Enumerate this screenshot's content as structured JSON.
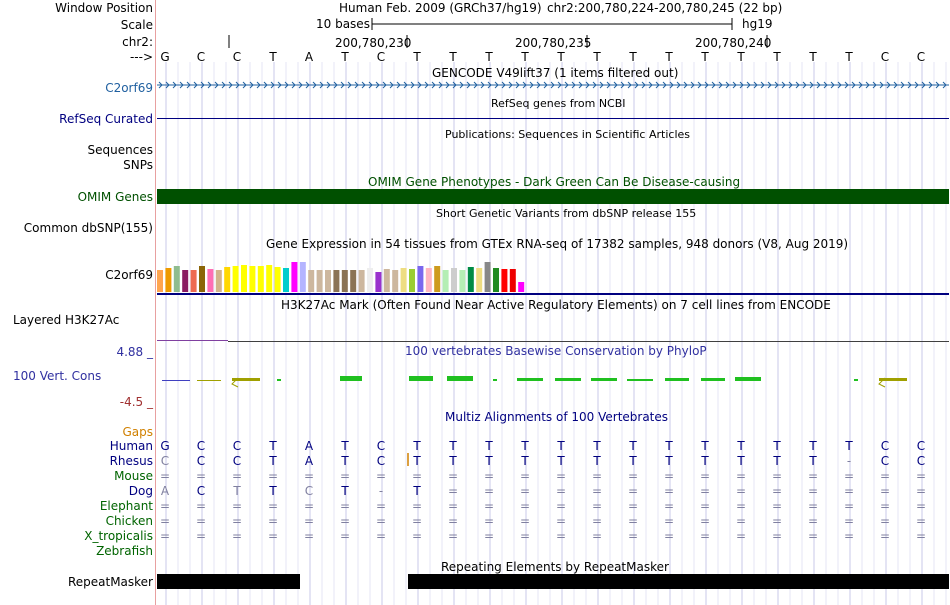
{
  "labels": {
    "window_position": "Window Position",
    "scale": "Scale",
    "chr": "chr2:",
    "strand": "--->",
    "gencode_gene": "C2orf69",
    "refseq": "RefSeq Curated",
    "sequences": "Sequences",
    "snps": "SNPs",
    "omim": "OMIM Genes",
    "dbsnp": "Common dbSNP(155)",
    "gtex_gene": "C2orf69",
    "h3k27ac": "Layered H3K27Ac",
    "cons_max": "4.88 _",
    "cons": "100 Vert. Cons",
    "cons_min": "-4.5 _",
    "gaps": "Gaps",
    "repeatmasker": "RepeatMasker"
  },
  "header": {
    "assembly": "Human Feb. 2009 (GRCh37/hg19)",
    "position": "chr2:200,780,224-200,780,245 (22 bp)",
    "scale_text": "10 bases",
    "db": "hg19",
    "coord1": "200,780,230",
    "coord2": "200,780,235",
    "coord3": "200,780,240"
  },
  "tracks": {
    "gencode": "GENCODE V49lift37 (1 items filtered out)",
    "refseq": "RefSeq genes from NCBI",
    "publications": "Publications: Sequences in Scientific Articles",
    "omim": "OMIM Gene Phenotypes - Dark Green Can Be Disease-causing",
    "dbsnp": "Short Genetic Variants from dbSNP release 155",
    "gtex": "Gene Expression in 54 tissues from GTEx RNA-seq of 17382 samples, 948 donors (V8, Aug 2019)",
    "h3k27ac": "H3K27Ac Mark (Often Found Near Active Regulatory Elements) on 7 cell lines from ENCODE",
    "cons": "100 vertebrates Basewise Conservation by PhyloP",
    "multiz": "Multiz Alignments of 100 Vertebrates",
    "repeatmasker": "Repeating Elements by RepeatMasker"
  },
  "sequence": [
    "G",
    "C",
    "C",
    "T",
    "A",
    "T",
    "C",
    "T",
    "T",
    "T",
    "T",
    "T",
    "T",
    "T",
    "T",
    "T",
    "T",
    "T",
    "T",
    "T",
    "C",
    "C"
  ],
  "alignment": [
    {
      "species": "Human",
      "color": "#000080",
      "bases": [
        "G",
        "C",
        "C",
        "T",
        "A",
        "T",
        "C",
        "T",
        "T",
        "T",
        "T",
        "T",
        "T",
        "T",
        "T",
        "T",
        "T",
        "T",
        "T",
        "T",
        "C",
        "C"
      ]
    },
    {
      "species": "Rhesus",
      "color": "#000080",
      "bases": [
        "C",
        "C",
        "C",
        "T",
        "A",
        "T",
        "C",
        "T",
        "T",
        "T",
        "T",
        "T",
        "T",
        "T",
        "T",
        "T",
        "T",
        "T",
        "T",
        "-",
        "C",
        "C"
      ]
    },
    {
      "species": "Mouse",
      "color": "#006400",
      "bases": [
        "=",
        "=",
        "=",
        "=",
        "=",
        "=",
        "=",
        "=",
        "=",
        "=",
        "=",
        "=",
        "=",
        "=",
        "=",
        "=",
        "=",
        "=",
        "=",
        "=",
        "=",
        "="
      ]
    },
    {
      "species": "Dog",
      "color": "#000080",
      "bases": [
        "A",
        "C",
        "T",
        "T",
        "C",
        "T",
        "-",
        "T",
        "=",
        "=",
        "=",
        "=",
        "=",
        "=",
        "=",
        "=",
        "=",
        "=",
        "=",
        "=",
        "=",
        "="
      ]
    },
    {
      "species": "Elephant",
      "color": "#006400",
      "bases": [
        "=",
        "=",
        "=",
        "=",
        "=",
        "=",
        "=",
        "=",
        "=",
        "=",
        "=",
        "=",
        "=",
        "=",
        "=",
        "=",
        "=",
        "=",
        "=",
        "=",
        "=",
        "="
      ]
    },
    {
      "species": "Chicken",
      "color": "#006400",
      "bases": [
        "=",
        "=",
        "=",
        "=",
        "=",
        "=",
        "=",
        "=",
        "=",
        "=",
        "=",
        "=",
        "=",
        "=",
        "=",
        "=",
        "=",
        "=",
        "=",
        "=",
        "=",
        "="
      ]
    },
    {
      "species": "X_tropicalis",
      "color": "#006400",
      "bases": [
        "=",
        "=",
        "=",
        "=",
        "=",
        "=",
        "=",
        "=",
        "=",
        "=",
        "=",
        "=",
        "=",
        "=",
        "=",
        "=",
        "=",
        "=",
        "=",
        "=",
        "=",
        "="
      ]
    },
    {
      "species": "Zebrafish",
      "color": "#006400",
      "bases": [
        "",
        "",
        "",
        "",
        "",
        "",
        "",
        "",
        "",
        "",
        "",
        "",
        "",
        "",
        "",
        "",
        "",
        "",
        "",
        "",
        "",
        ""
      ]
    }
  ],
  "colors": {
    "omim": "#005000",
    "gencode": "#2060a0",
    "refseq": "#000080",
    "cons": "#3030a0",
    "gaps": "#d08000"
  }
}
